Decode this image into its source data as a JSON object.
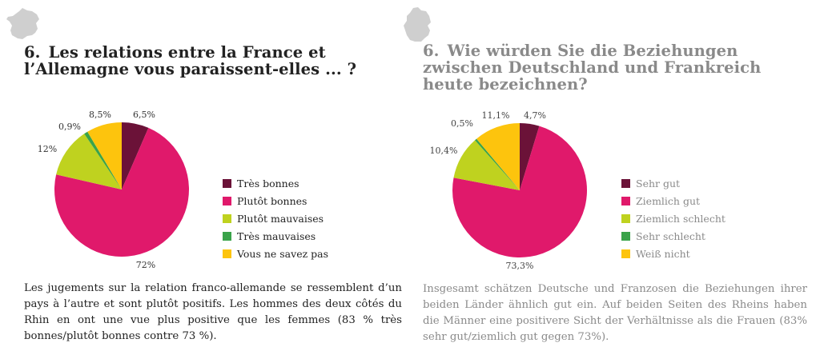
{
  "colors": {
    "tres_bonnes": "#6b1238",
    "plutot_bonnes": "#e0196b",
    "plutot_mauvaises": "#bfd21f",
    "tres_mauvaises": "#3aa34a",
    "ne_savez_pas": "#fdc40d",
    "map": "#cfcfcf"
  },
  "fr": {
    "icon": "france-map-icon",
    "number": "6.",
    "question": "Les relations entre la France et l’Allemagne vous paraissent-elles ... ?",
    "body": "Les jugements sur la relation franco-allemande se ressemblent d’un pays à l’autre et sont plutôt positifs. Les hommes des deux côtés du Rhin en ont une vue plus positive que les femmes (83 % très bonnes/plutôt bonnes contre 73 %)."
  },
  "de": {
    "icon": "germany-map-icon",
    "number": "6.",
    "question": "Wie würden Sie die Beziehungen zwischen Deutschland und Frankreich heute bezeichnen?",
    "body": "Insgesamt schätzen Deutsche und Franzosen die Beziehungen ihrer beiden Länder ähnlich gut ein. Auf beiden Seiten des Rheins haben die Männer eine positivere Sicht der Verhältnisse als die Frauen (83% sehr gut/ziemlich gut gegen 73%)."
  },
  "chart_data": [
    {
      "type": "pie",
      "title": "",
      "categories": [
        "Très bonnes",
        "Plutôt bonnes",
        "Plutôt mauvaises",
        "Très mauvaises",
        "Vous ne savez pas"
      ],
      "values": [
        6.5,
        72,
        12,
        0.9,
        8.5
      ],
      "labels": [
        "6,5%",
        "72%",
        "12%",
        "0,9%",
        "8,5%"
      ],
      "colors": [
        "#6b1238",
        "#e0196b",
        "#bfd21f",
        "#3aa34a",
        "#fdc40d"
      ],
      "legend_position": "right"
    },
    {
      "type": "pie",
      "title": "",
      "categories": [
        "Sehr gut",
        "Ziemlich gut",
        "Ziemlich schlecht",
        "Sehr schlecht",
        "Weiß nicht"
      ],
      "values": [
        4.7,
        73.3,
        10.4,
        0.5,
        11.1
      ],
      "labels": [
        "4,7%",
        "73,3%",
        "10,4%",
        "0,5%",
        "11,1%"
      ],
      "colors": [
        "#6b1238",
        "#e0196b",
        "#bfd21f",
        "#3aa34a",
        "#fdc40d"
      ],
      "legend_position": "right"
    }
  ]
}
